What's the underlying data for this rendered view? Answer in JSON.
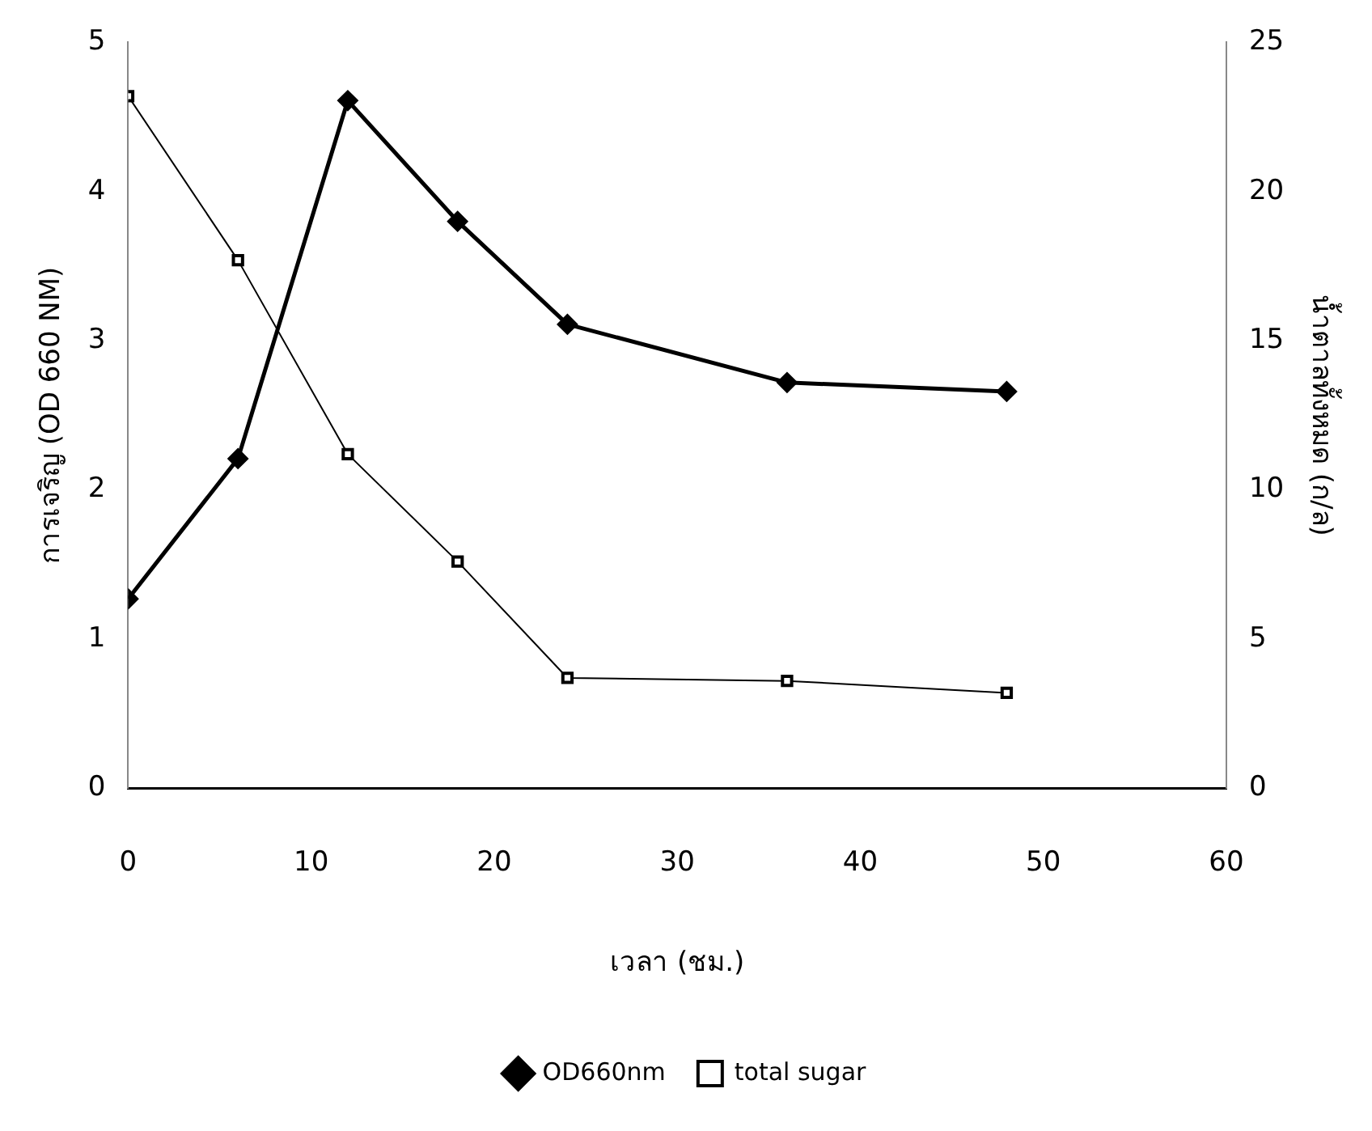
{
  "chart_data": {
    "type": "line",
    "xlabel": "เวลา (ชม.)",
    "ylabel": "การเจริญ (OD 660 NM)",
    "y2label": "น้ำตาลทั้งหมด (ก/ล)",
    "x": [
      0,
      6,
      12,
      18,
      24,
      36,
      48
    ],
    "series": [
      {
        "name": "OD660nm",
        "color": "#000000",
        "marker": "diamond",
        "values": [
          1.27,
          2.21,
          4.61,
          3.8,
          3.11,
          2.72,
          2.66
        ]
      },
      {
        "name": "total sugar",
        "color": "#000000",
        "marker": "square",
        "axis": "y2",
        "values": [
          23.2,
          17.7,
          11.2,
          7.6,
          3.7,
          3.6,
          3.2
        ]
      }
    ],
    "xlim": [
      0,
      60
    ],
    "xticks": [
      0,
      10,
      20,
      30,
      40,
      50,
      60
    ],
    "ylim": [
      0,
      5
    ],
    "yticks": [
      0,
      1,
      2,
      3,
      4,
      5
    ],
    "y2lim": [
      0,
      25
    ],
    "y2ticks": [
      0,
      5,
      10,
      15,
      20,
      25
    ],
    "grid": false,
    "legend": "bottom",
    "line_style": "solid"
  }
}
